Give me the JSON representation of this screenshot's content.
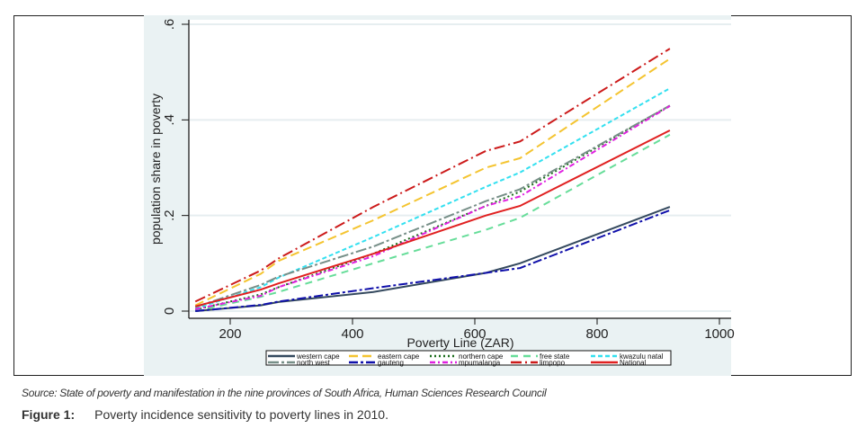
{
  "chart_data": {
    "type": "line",
    "title": "",
    "xlabel": "Poverty Line (ZAR)",
    "ylabel": "population share in poverty",
    "xlim": [
      120,
      1000
    ],
    "ylim": [
      0,
      0.6
    ],
    "xticks": [
      200,
      400,
      600,
      800,
      1000
    ],
    "xtick_labels": [
      "200",
      "400",
      "600",
      "800",
      "1000"
    ],
    "yticks": [
      0,
      0.2,
      0.4,
      0.6
    ],
    "ytick_labels": [
      "0",
      ".2",
      ".4",
      ".6"
    ],
    "grid": "horizontal",
    "legend_position": "bottom",
    "x": [
      143,
      250,
      279,
      434,
      618,
      674,
      919
    ],
    "series": [
      {
        "name": "western cape",
        "color": "#34495e",
        "dash": "solid",
        "values": [
          0.0,
          0.012,
          0.019,
          0.04,
          0.08,
          0.1,
          0.218
        ]
      },
      {
        "name": "eastern cape",
        "color": "#f4c430",
        "dash": "10,5",
        "values": [
          0.012,
          0.078,
          0.105,
          0.19,
          0.3,
          0.32,
          0.528
        ]
      },
      {
        "name": "northern cape",
        "color": "#1a6b1a",
        "dash": "2,3",
        "values": [
          0.003,
          0.035,
          0.05,
          0.12,
          0.22,
          0.25,
          0.43
        ]
      },
      {
        "name": "free state",
        "color": "#66dd99",
        "dash": "8,6",
        "values": [
          0.0,
          0.03,
          0.04,
          0.1,
          0.17,
          0.195,
          0.369
        ]
      },
      {
        "name": "kwazulu natal",
        "color": "#33e0f0",
        "dash": "5,3",
        "values": [
          0.005,
          0.05,
          0.07,
          0.155,
          0.26,
          0.29,
          0.466
        ]
      },
      {
        "name": "north west",
        "color": "#778f88",
        "dash": "12,3,3,3",
        "values": [
          0.008,
          0.055,
          0.072,
          0.135,
          0.23,
          0.255,
          0.43
        ]
      },
      {
        "name": "gauteng",
        "color": "#1010aa",
        "dash": "10,3,3,3",
        "values": [
          0.0,
          0.013,
          0.02,
          0.048,
          0.08,
          0.09,
          0.211
        ]
      },
      {
        "name": "mpumalanga",
        "color": "#e020e0",
        "dash": "6,3,2,3",
        "values": [
          0.004,
          0.032,
          0.05,
          0.115,
          0.22,
          0.24,
          0.429
        ]
      },
      {
        "name": "limpopo",
        "color": "#cc1a1a",
        "dash": "12,4,2,4",
        "values": [
          0.02,
          0.085,
          0.11,
          0.218,
          0.335,
          0.355,
          0.549
        ]
      },
      {
        "name": "National",
        "color": "#e02020",
        "dash": "solid",
        "values": [
          0.01,
          0.045,
          0.058,
          0.12,
          0.2,
          0.22,
          0.378
        ]
      }
    ],
    "legend": {
      "rows": [
        [
          "western cape",
          "eastern cape",
          "northern cape",
          "free state",
          "kwazulu natal"
        ],
        [
          "north west",
          "gauteng",
          "mpumalanga",
          "limpopo",
          "National"
        ]
      ]
    }
  },
  "caption": {
    "source": "Source: State of poverty and manifestation in the nine provinces of South Africa, Human Sciences Research Council",
    "figure_label": "Figure 1:",
    "figure_text": "Poverty incidence sensitivity to poverty lines in 2010."
  }
}
